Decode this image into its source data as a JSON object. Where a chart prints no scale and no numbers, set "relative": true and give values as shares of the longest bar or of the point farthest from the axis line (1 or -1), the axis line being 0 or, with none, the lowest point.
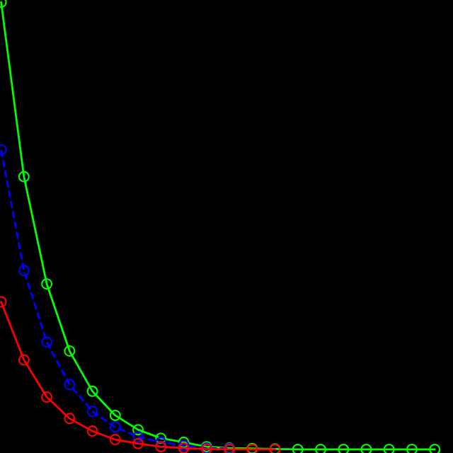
{
  "chart_data": {
    "type": "line",
    "relative": true,
    "marker": "circle",
    "categories": [
      null,
      null,
      null,
      null,
      null,
      null,
      null,
      null,
      null,
      null,
      null,
      null,
      null,
      null,
      null,
      null,
      null,
      null,
      null,
      null
    ],
    "series": [
      {
        "color": "#00ff00",
        "line_style": "solid",
        "values": [
          1,
          0.61,
          0.37,
          0.22,
          0.13,
          0.076,
          0.044,
          0.025,
          0.016,
          0.006,
          0.003,
          0.002,
          0.001,
          0,
          0,
          0,
          0,
          0,
          0,
          0
        ]
      },
      {
        "color": "#0000ff",
        "line_style": "dashed",
        "values": [
          0.67,
          0.4,
          0.24,
          0.145,
          0.085,
          0.05,
          0.028,
          0.016,
          0.009,
          0.003,
          0.002,
          null,
          null,
          null,
          null,
          null,
          null,
          null,
          null,
          null
        ]
      },
      {
        "color": "#ff0000",
        "line_style": "solid",
        "values": [
          0.33,
          0.2,
          0.117,
          0.069,
          0.041,
          0.022,
          0.013,
          0.006,
          0.003,
          0.001,
          0,
          0,
          0,
          null,
          null,
          null,
          null,
          null,
          null,
          null
        ]
      }
    ]
  }
}
